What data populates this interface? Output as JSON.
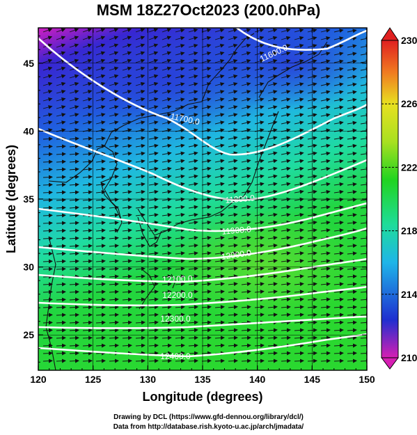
{
  "title": "MSM 18Z27Oct2023 (200.0hPa)",
  "x_axis": {
    "label": "Longitude (degrees)",
    "ticks": [
      "120",
      "125",
      "130",
      "135",
      "140",
      "145",
      "150"
    ],
    "range": [
      120,
      150
    ]
  },
  "y_axis": {
    "label": "Latitude  (degrees)",
    "ticks": [
      "25",
      "30",
      "35",
      "40",
      "45"
    ],
    "range": [
      22.4,
      47.6
    ]
  },
  "colorbar": {
    "ticks": [
      "230",
      "226",
      "222",
      "218",
      "214",
      "210"
    ],
    "range": [
      210,
      230
    ],
    "colors": [
      "#d61fb3",
      "#1f2fd0",
      "#1fb5e8",
      "#1fdc9a",
      "#20d420",
      "#a8e020",
      "#e8e020",
      "#f07a20",
      "#e02020"
    ]
  },
  "contours": {
    "labels": [
      "11600.0",
      "11700.0",
      "11800.0",
      "11900.0",
      "12000.0",
      "12100.0",
      "12200.0",
      "12300.0",
      "12400.0"
    ],
    "color": "#ffffff"
  },
  "credits": {
    "drawing": "Drawing by DCL (https://www.gfd-dennou.org/library/dcl/)",
    "data": "Data from http://database.rish.kyoto-u.ac.jp/arch/jmadata/"
  }
}
